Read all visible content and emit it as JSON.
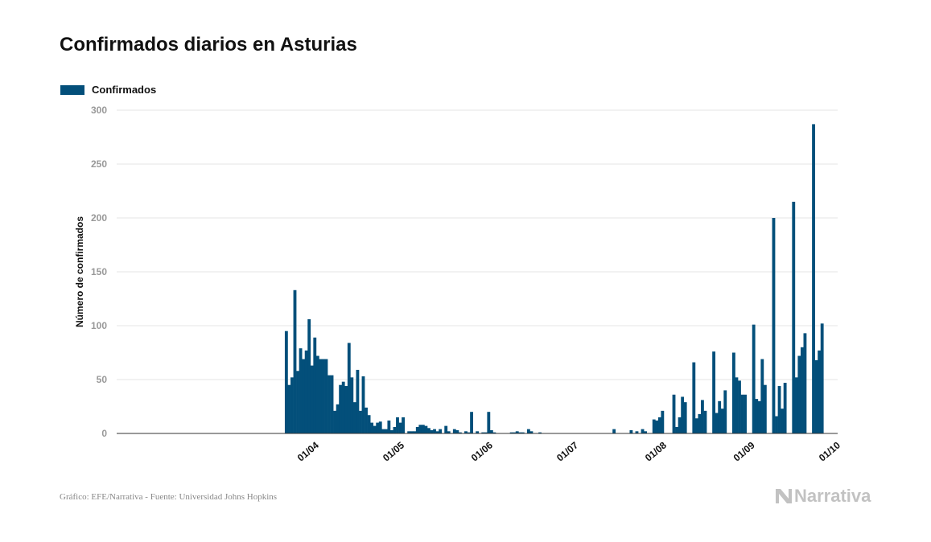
{
  "title": "Confirmados diarios en Asturias",
  "colors": {
    "bar": "#034f7a",
    "grid": "#e6e6e6",
    "tick": "#999999"
  },
  "legend": {
    "label": "Confirmados"
  },
  "footer": {
    "source": "Gráfico: EFE/Narrativa - Fuente: Universidad Johns Hopkins",
    "brand": "Narrativa",
    "brand_icon": "narrativa-logo-icon"
  },
  "chart_data": {
    "type": "bar",
    "title": "Confirmados diarios en Asturias",
    "xlabel": "",
    "ylabel": "Número de confirmados",
    "ylim": [
      0,
      300
    ],
    "yticks": [
      0,
      50,
      100,
      150,
      200,
      250,
      300
    ],
    "grid": true,
    "legend_position": "top-left",
    "x_axis": {
      "type": "date",
      "start": "2020-01-22",
      "end": "2020-10-01"
    },
    "xticks": [
      {
        "date": "2020-04-01",
        "label": "01/04"
      },
      {
        "date": "2020-05-01",
        "label": "01/05"
      },
      {
        "date": "2020-06-01",
        "label": "01/06"
      },
      {
        "date": "2020-07-01",
        "label": "01/07"
      },
      {
        "date": "2020-08-01",
        "label": "01/08"
      },
      {
        "date": "2020-09-01",
        "label": "01/09"
      },
      {
        "date": "2020-10-01",
        "label": "01/10"
      }
    ],
    "series": [
      {
        "name": "Confirmados",
        "points": [
          [
            "2020-03-21",
            95
          ],
          [
            "2020-03-22",
            45
          ],
          [
            "2020-03-23",
            52
          ],
          [
            "2020-03-24",
            133
          ],
          [
            "2020-03-25",
            58
          ],
          [
            "2020-03-26",
            79
          ],
          [
            "2020-03-27",
            69
          ],
          [
            "2020-03-28",
            77
          ],
          [
            "2020-03-29",
            106
          ],
          [
            "2020-03-30",
            63
          ],
          [
            "2020-03-31",
            89
          ],
          [
            "2020-04-01",
            72
          ],
          [
            "2020-04-02",
            69
          ],
          [
            "2020-04-03",
            69
          ],
          [
            "2020-04-04",
            69
          ],
          [
            "2020-04-05",
            54
          ],
          [
            "2020-04-06",
            54
          ],
          [
            "2020-04-07",
            21
          ],
          [
            "2020-04-08",
            27
          ],
          [
            "2020-04-09",
            45
          ],
          [
            "2020-04-10",
            48
          ],
          [
            "2020-04-11",
            44
          ],
          [
            "2020-04-12",
            84
          ],
          [
            "2020-04-13",
            52
          ],
          [
            "2020-04-14",
            29
          ],
          [
            "2020-04-15",
            59
          ],
          [
            "2020-04-16",
            21
          ],
          [
            "2020-04-17",
            53
          ],
          [
            "2020-04-18",
            24
          ],
          [
            "2020-04-19",
            17
          ],
          [
            "2020-04-20",
            10
          ],
          [
            "2020-04-21",
            7
          ],
          [
            "2020-04-22",
            10
          ],
          [
            "2020-04-23",
            11
          ],
          [
            "2020-04-24",
            4
          ],
          [
            "2020-04-25",
            4
          ],
          [
            "2020-04-26",
            12
          ],
          [
            "2020-04-27",
            3
          ],
          [
            "2020-04-28",
            6
          ],
          [
            "2020-04-29",
            15
          ],
          [
            "2020-04-30",
            10
          ],
          [
            "2020-05-01",
            15
          ],
          [
            "2020-05-02",
            0
          ],
          [
            "2020-05-03",
            2
          ],
          [
            "2020-05-04",
            2
          ],
          [
            "2020-05-05",
            2
          ],
          [
            "2020-05-06",
            6
          ],
          [
            "2020-05-07",
            8
          ],
          [
            "2020-05-08",
            8
          ],
          [
            "2020-05-09",
            7
          ],
          [
            "2020-05-10",
            5
          ],
          [
            "2020-05-11",
            3
          ],
          [
            "2020-05-12",
            4
          ],
          [
            "2020-05-13",
            2
          ],
          [
            "2020-05-14",
            4
          ],
          [
            "2020-05-15",
            0
          ],
          [
            "2020-05-16",
            7
          ],
          [
            "2020-05-17",
            2
          ],
          [
            "2020-05-18",
            0
          ],
          [
            "2020-05-19",
            4
          ],
          [
            "2020-05-20",
            3
          ],
          [
            "2020-05-21",
            1
          ],
          [
            "2020-05-23",
            2
          ],
          [
            "2020-05-24",
            1
          ],
          [
            "2020-05-25",
            20
          ],
          [
            "2020-05-27",
            2
          ],
          [
            "2020-05-29",
            1
          ],
          [
            "2020-05-30",
            1
          ],
          [
            "2020-05-31",
            20
          ],
          [
            "2020-06-01",
            3
          ],
          [
            "2020-06-02",
            1
          ],
          [
            "2020-06-08",
            1
          ],
          [
            "2020-06-09",
            1
          ],
          [
            "2020-06-10",
            2
          ],
          [
            "2020-06-11",
            1
          ],
          [
            "2020-06-12",
            1
          ],
          [
            "2020-06-14",
            4
          ],
          [
            "2020-06-15",
            2
          ],
          [
            "2020-06-18",
            1
          ],
          [
            "2020-07-14",
            4
          ],
          [
            "2020-07-20",
            3
          ],
          [
            "2020-07-22",
            2
          ],
          [
            "2020-07-24",
            4
          ],
          [
            "2020-07-25",
            2
          ],
          [
            "2020-07-28",
            13
          ],
          [
            "2020-07-29",
            12
          ],
          [
            "2020-07-30",
            15
          ],
          [
            "2020-07-31",
            21
          ],
          [
            "2020-08-04",
            36
          ],
          [
            "2020-08-05",
            6
          ],
          [
            "2020-08-06",
            15
          ],
          [
            "2020-08-07",
            34
          ],
          [
            "2020-08-08",
            29
          ],
          [
            "2020-08-11",
            66
          ],
          [
            "2020-08-12",
            14
          ],
          [
            "2020-08-13",
            18
          ],
          [
            "2020-08-14",
            31
          ],
          [
            "2020-08-15",
            21
          ],
          [
            "2020-08-18",
            76
          ],
          [
            "2020-08-19",
            19
          ],
          [
            "2020-08-20",
            30
          ],
          [
            "2020-08-21",
            23
          ],
          [
            "2020-08-22",
            40
          ],
          [
            "2020-08-25",
            75
          ],
          [
            "2020-08-26",
            52
          ],
          [
            "2020-08-27",
            49
          ],
          [
            "2020-08-28",
            36
          ],
          [
            "2020-08-29",
            36
          ],
          [
            "2020-09-01",
            101
          ],
          [
            "2020-09-02",
            32
          ],
          [
            "2020-09-03",
            30
          ],
          [
            "2020-09-04",
            69
          ],
          [
            "2020-09-05",
            45
          ],
          [
            "2020-09-08",
            200
          ],
          [
            "2020-09-09",
            16
          ],
          [
            "2020-09-10",
            44
          ],
          [
            "2020-09-11",
            23
          ],
          [
            "2020-09-12",
            47
          ],
          [
            "2020-09-15",
            215
          ],
          [
            "2020-09-16",
            52
          ],
          [
            "2020-09-17",
            72
          ],
          [
            "2020-09-18",
            80
          ],
          [
            "2020-09-19",
            93
          ],
          [
            "2020-09-22",
            287
          ],
          [
            "2020-09-23",
            68
          ],
          [
            "2020-09-24",
            77
          ],
          [
            "2020-09-25",
            102
          ]
        ]
      }
    ]
  }
}
